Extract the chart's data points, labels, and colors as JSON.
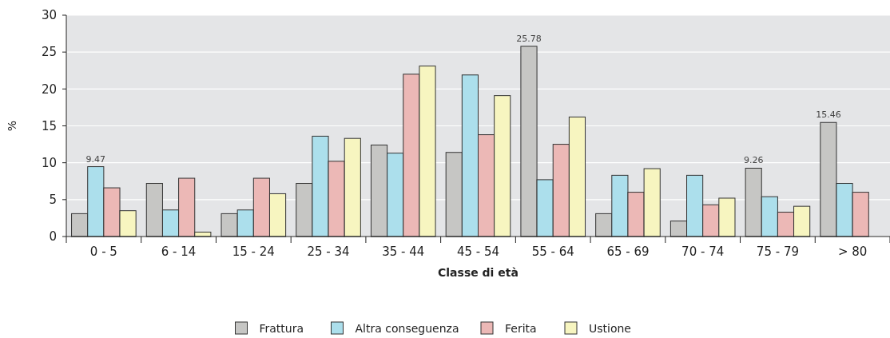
{
  "chart_data": {
    "type": "bar",
    "xlabel": "Classe di età",
    "ylabel": "%",
    "categories": [
      "0 - 5",
      "6 - 14",
      "15 - 24",
      "25 - 34",
      "35 - 44",
      "45 - 54",
      "55 - 64",
      "65 - 69",
      "70 - 74",
      "75 - 79",
      "> 80"
    ],
    "series": [
      {
        "name": "Frattura",
        "color": "#c6c6c4",
        "values": [
          3.1,
          7.2,
          3.1,
          7.2,
          12.4,
          11.4,
          25.78,
          3.1,
          2.1,
          9.26,
          15.46
        ],
        "value_labels": [
          null,
          null,
          null,
          null,
          null,
          null,
          "25.78",
          null,
          null,
          "9.26",
          "15.46"
        ]
      },
      {
        "name": "Altra conseguenza",
        "color": "#acdfec",
        "values": [
          9.47,
          3.6,
          3.6,
          13.6,
          11.3,
          21.9,
          7.7,
          8.3,
          8.3,
          5.4,
          7.2
        ],
        "value_labels": [
          "9.47",
          null,
          null,
          null,
          null,
          null,
          null,
          null,
          null,
          null,
          null
        ]
      },
      {
        "name": "Ferita",
        "color": "#ecb8b6",
        "values": [
          6.6,
          7.9,
          7.9,
          10.2,
          22.0,
          13.8,
          12.5,
          6.0,
          4.3,
          3.3,
          6.0
        ]
      },
      {
        "name": "Ustione",
        "color": "#f7f5c0",
        "values": [
          3.5,
          0.6,
          5.8,
          13.3,
          23.1,
          19.1,
          16.2,
          9.2,
          5.2,
          4.1,
          null
        ]
      }
    ],
    "ylim": [
      0,
      30
    ],
    "yticks": [
      0,
      5,
      10,
      15,
      20,
      25,
      30
    ],
    "grid": "y",
    "legend": "bottom"
  }
}
